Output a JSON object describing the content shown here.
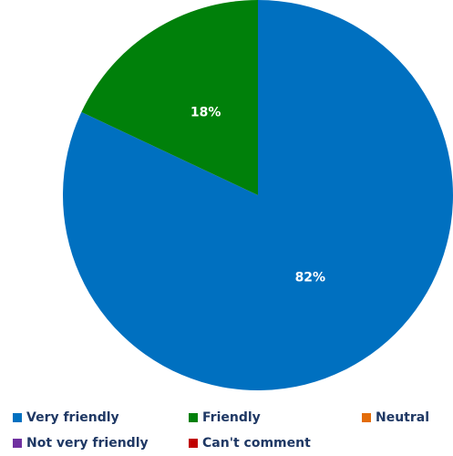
{
  "chart_data": {
    "type": "pie",
    "categories": [
      "Very friendly",
      "Friendly",
      "Neutral",
      "Not very friendly",
      "Can't comment"
    ],
    "values": [
      82,
      18,
      0,
      0,
      0
    ],
    "data_labels": [
      "82%",
      "18%",
      "",
      "",
      ""
    ],
    "colors": [
      "#0070c0",
      "#00800a",
      "#e36c09",
      "#7030a0",
      "#c00000"
    ],
    "legend_position": "bottom",
    "start_angle_deg": 0,
    "direction": "clockwise"
  }
}
